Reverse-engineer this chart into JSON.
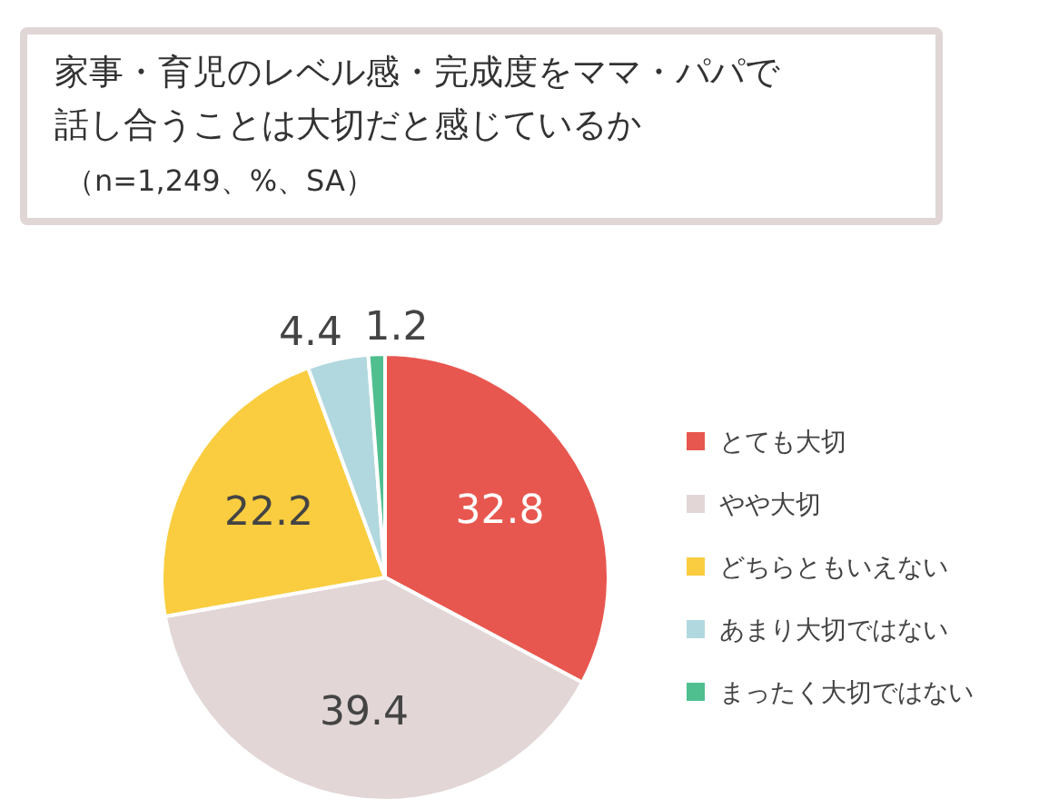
{
  "chart_data": {
    "type": "pie",
    "title": "家事・育児のレベル感・完成度をママ・パパで話し合うことは大切だと感じているか",
    "subtitle": "（n=1,249、%、SA）",
    "categories": [
      "とても大切",
      "やや大切",
      "どちらともいえない",
      "あまり大切ではない",
      "まったく大切ではない"
    ],
    "values": [
      32.8,
      39.4,
      22.2,
      4.4,
      1.2
    ],
    "colors": [
      "#e8574f",
      "#e2d6d6",
      "#f9cd3f",
      "#b2d8df",
      "#4fbf8f"
    ],
    "data_labels": true,
    "legend": "right"
  }
}
